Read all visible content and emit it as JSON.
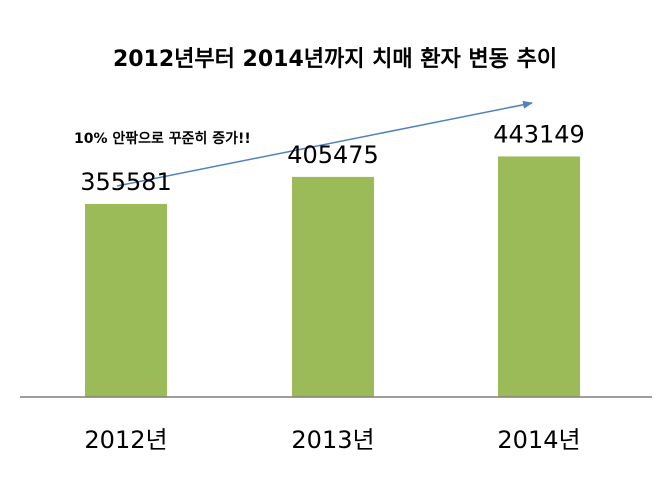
{
  "chart_data": {
    "type": "bar",
    "title": "2012년부터 2014년까지 치매 환자 변동 추이",
    "annotation": "10% 안팎으로 꾸준히 증가!!",
    "categories": [
      "2012년",
      "2013년",
      "2014년"
    ],
    "values": [
      355581,
      405475,
      443149
    ],
    "data_labels": [
      "355581",
      "405475",
      "443149"
    ],
    "ylim": [
      0,
      630000
    ],
    "grid": false,
    "legend": "none",
    "bar_color": "#9BBB59",
    "trend_arrow_color": "#4F81BD",
    "axis_color": "#7F7F7F"
  }
}
